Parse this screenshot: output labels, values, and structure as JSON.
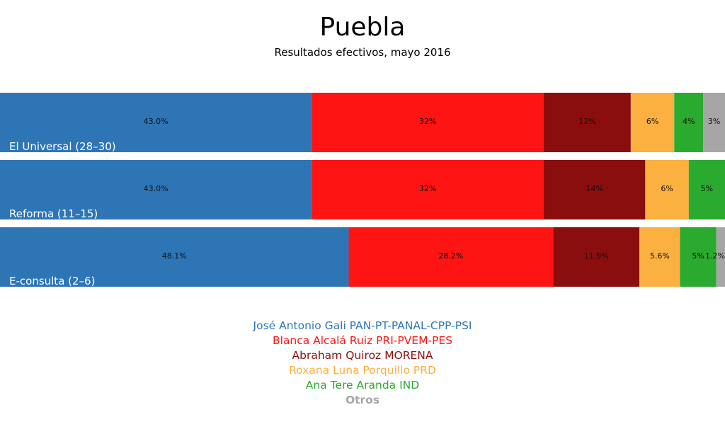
{
  "chart_data": {
    "type": "bar",
    "orientation": "horizontal-stacked-100",
    "title": "Puebla",
    "subtitle": "Resultados efectivos, mayo 2016",
    "categories": [
      "El Universal (28–30)",
      "Reforma (11–15)",
      "E-consulta (2–6)"
    ],
    "series": [
      {
        "name": "José Antonio Gali PAN-PT-PANAL-CPP-PSI",
        "color": "#2e75b6",
        "values": [
          43.0,
          43.0,
          48.1
        ],
        "labels": [
          "43.0%",
          "43.0%",
          "48.1%"
        ]
      },
      {
        "name": "Blanca Alcalá Ruiz PRI-PVEM-PES",
        "color": "#ff1414",
        "values": [
          32,
          32,
          28.2
        ],
        "labels": [
          "32%",
          "32%",
          "28.2%"
        ]
      },
      {
        "name": "Abraham Quiroz MORENA",
        "color": "#8b0e0e",
        "values": [
          12,
          14,
          11.9
        ],
        "labels": [
          "12%",
          "14%",
          "11.9%"
        ]
      },
      {
        "name": "Roxana Luna Porquillo PRD",
        "color": "#fbb040",
        "values": [
          6,
          6,
          5.6
        ],
        "labels": [
          "6%",
          "6%",
          "5.6%"
        ]
      },
      {
        "name": "Ana Tere Aranda IND",
        "color": "#2aaa2e",
        "values": [
          4,
          5,
          5
        ],
        "labels": [
          "4%",
          "5%",
          "5%"
        ]
      },
      {
        "name": "Otros",
        "color": "#a6a6a6",
        "values": [
          3,
          0,
          1.2
        ],
        "labels": [
          "3%",
          "",
          "1.2%"
        ]
      }
    ],
    "xlim": [
      0,
      100
    ],
    "grid": false,
    "legend": "bottom-center"
  }
}
